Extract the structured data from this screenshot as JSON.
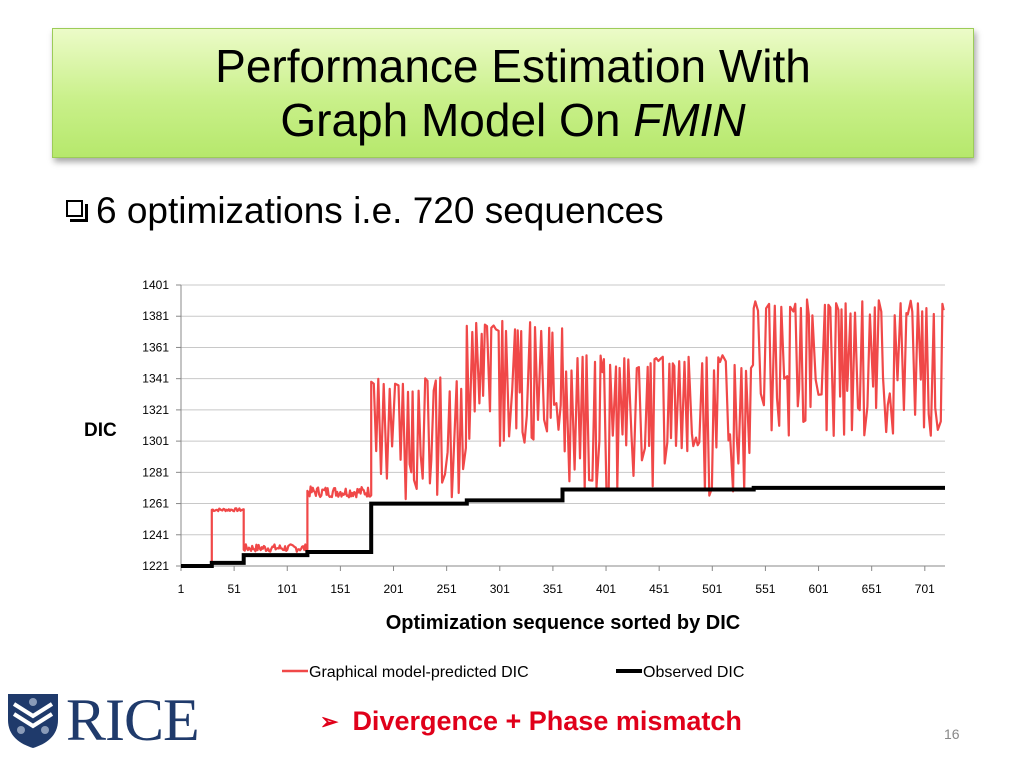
{
  "slide": {
    "title_line1": "Performance Estimation With",
    "title_line2_prefix": "Graph Model On ",
    "title_line2_italic": "FMIN",
    "bullet": "6 optimizations i.e. 720 sequences",
    "conclusion": "Divergence + Phase mismatch",
    "page_number": "16",
    "logo_text": "RICE",
    "icons": {
      "bullet": "checkbox-icon",
      "conclusion": "arrow-right-icon",
      "logo": "shield-icon"
    }
  },
  "chart_data": {
    "type": "line",
    "title": "",
    "xlabel": "Optimization sequence sorted by DIC",
    "ylabel": "DIC",
    "xlim": [
      1,
      720
    ],
    "ylim": [
      1221,
      1401
    ],
    "x_ticks": [
      1,
      51,
      101,
      151,
      201,
      251,
      301,
      351,
      401,
      451,
      501,
      551,
      601,
      651,
      701
    ],
    "y_ticks": [
      1221,
      1241,
      1261,
      1281,
      1301,
      1321,
      1341,
      1361,
      1381,
      1401
    ],
    "grid": "horizontal",
    "legend_position": "bottom",
    "series": [
      {
        "name": "Graphical model-predicted  DIC",
        "color": "#f04848",
        "style": "oscillating",
        "segments": [
          {
            "x": [
              1,
              30
            ],
            "low": 1221,
            "high": 1221
          },
          {
            "x": [
              30,
              60
            ],
            "low": 1256,
            "high": 1258
          },
          {
            "x": [
              60,
              120
            ],
            "low": 1230,
            "high": 1235
          },
          {
            "x": [
              120,
              180
            ],
            "low": 1265,
            "high": 1272
          },
          {
            "x": [
              180,
              270
            ],
            "low": 1262,
            "high": 1342
          },
          {
            "x": [
              270,
              360
            ],
            "low": 1298,
            "high": 1378
          },
          {
            "x": [
              360,
              540
            ],
            "low": 1266,
            "high": 1356
          },
          {
            "x": [
              540,
              720
            ],
            "low": 1304,
            "high": 1392
          }
        ]
      },
      {
        "name": "Observed DIC",
        "color": "#000000",
        "style": "step",
        "x": [
          1,
          30,
          30,
          60,
          60,
          120,
          120,
          180,
          180,
          270,
          270,
          360,
          360,
          540,
          540,
          720
        ],
        "y": [
          1221,
          1221,
          1223,
          1223,
          1228,
          1228,
          1230,
          1230,
          1261,
          1261,
          1263,
          1263,
          1270,
          1270,
          1271,
          1271
        ]
      }
    ]
  }
}
